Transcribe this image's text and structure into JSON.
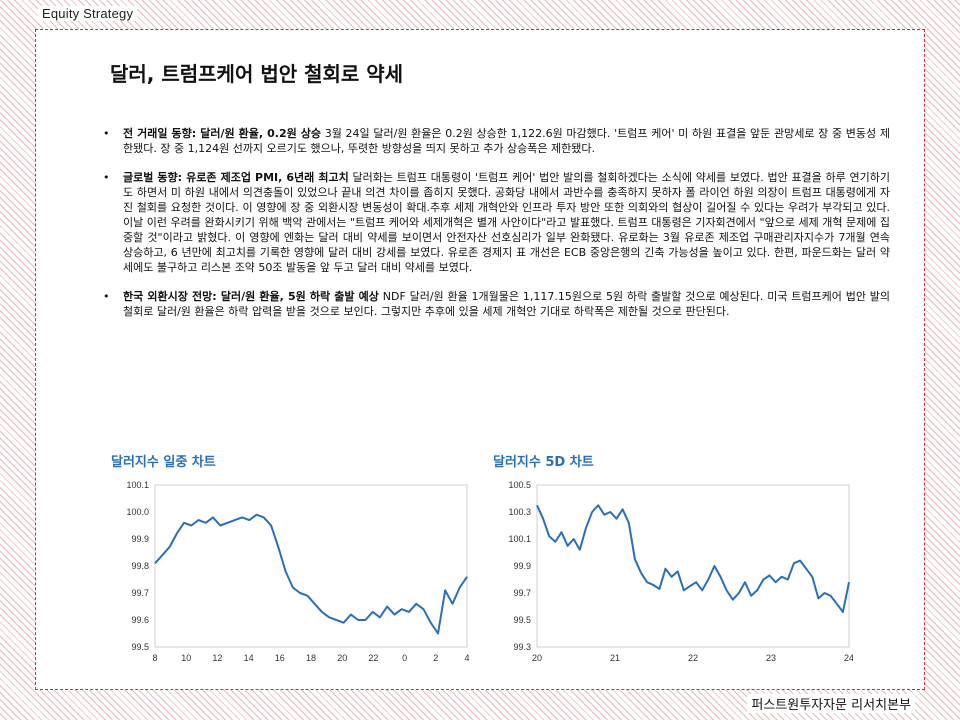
{
  "header": {
    "section": "Equity Strategy"
  },
  "page": {
    "title": "달러, 트럼프케어 법안 철회로 약세"
  },
  "bullets": [
    {
      "lead": "전 거래일 동향: 달러/원 환율, 0.2원 상승",
      "body": "3월 24일 달러/원 환율은 0.2원 상승한 1,122.6원 마감했다. '트럼프 케어' 미 하원 표결을 앞둔 관망세로 장 중 변동성 제한됐다. 장 중 1,124원 선까지 오르기도 했으나, 뚜렷한 방향성을 띄지 못하고 추가 상승폭은 제한됐다."
    },
    {
      "lead": "글로벌 동향: 유로존 제조업 PMI, 6년래 최고치",
      "body": "달러화는 트럼프 대통령이 '트럼프 케어' 법안 발의를 철회하겠다는 소식에 약세를 보였다. 법안 표결을 하루 연기하기도 하면서 미 하원 내에서 의견충돌이 있었으나 끝내 의견 차이를 좁히지 못했다. 공화당 내에서 과반수를 충족하지 못하자 폴 라이언 하원 의장이 트럼프 대통령에게 자진 철회를 요청한 것이다. 이 영향에 장 중 외환시장 변동성이 확대.추후 세제 개혁안와 인프라 투자 방안 또한 의회와의 협상이 길어질 수 있다는 우려가 부각되고 있다. 이날 이런 우려를 완화시키기 위해 백악 관에서는 \"트럼프 케어와 세제개혁은 별개 사안이다\"라고 발표했다. 트럼프 대통령은 기자회견에서 \"앞으로 세제 개혁 문제에 집중할 것\"이라고 밝혔다. 이 영향에 엔화는 달러 대비 약세를 보이면서 안전자산 선호심리가 일부 완화됐다. 유로화는 3월 유로존 제조업 구매관리자지수가 7개월 연속 상승하고, 6 년만에 최고치를 기록한 영향에 달러 대비 강세를 보였다. 유로존 경제지 표 개선은 ECB 중앙은행의 긴축 가능성을 높이고 있다. 한편, 파운드화는 달러 약세에도 불구하고 리스본 조약 50조 발동을 앞 두고 달러 대비 약세를 보였다."
    },
    {
      "lead": "한국 외환시장 전망: 달러/원 환율, 5원 하락 출발 예상",
      "body": "NDF 달러/원 환율 1개월물은 1,117.15원으로 5원 하락 출발할 것으로 예상된다. 미국 트럼프케어 법안 발의 철회로 달러/원 환율은 하락 압력을 받을 것으로 보인다. 그렇지만 추후에 있을 세제 개혁안 기대로 하락폭은 제한될 것으로 판단된다."
    }
  ],
  "bullet_symbol": "•",
  "footer": {
    "source": "퍼스트원투자자문 리서치본부"
  },
  "chart_data": [
    {
      "type": "line",
      "title": "달러지수 일중 차트",
      "line_color": "#2a6fb6",
      "x_ticks": [
        "8",
        "10",
        "12",
        "14",
        "16",
        "18",
        "20",
        "22",
        "0",
        "2",
        "4"
      ],
      "y_ticks": [
        "100.1",
        "100.0",
        "99.9",
        "99.8",
        "99.7",
        "99.6",
        "99.5"
      ],
      "ylim": [
        99.5,
        100.1
      ],
      "x": [
        8,
        8.5,
        9,
        9.5,
        10,
        10.5,
        11,
        11.5,
        12,
        12.5,
        13,
        13.5,
        14,
        14.5,
        15,
        15.5,
        16,
        16.5,
        17,
        17.5,
        18,
        18.5,
        19,
        19.5,
        20,
        20.5,
        21,
        21.5,
        22,
        22.5,
        23,
        23.5,
        24,
        24.5,
        25,
        25.5,
        26,
        26.5,
        27,
        27.5,
        28,
        28.5,
        29,
        29.5
      ],
      "y": [
        99.81,
        99.84,
        99.87,
        99.92,
        99.96,
        99.95,
        99.97,
        99.96,
        99.98,
        99.95,
        99.96,
        99.97,
        99.98,
        99.97,
        99.99,
        99.98,
        99.95,
        99.87,
        99.78,
        99.72,
        99.7,
        99.69,
        99.66,
        99.63,
        99.61,
        99.6,
        99.59,
        99.62,
        99.6,
        99.6,
        99.63,
        99.61,
        99.65,
        99.62,
        99.64,
        99.63,
        99.66,
        99.64,
        99.59,
        99.55,
        99.71,
        99.66,
        99.72,
        99.76
      ]
    },
    {
      "type": "line",
      "title": "달러지수 5D 차트",
      "line_color": "#2a6fb6",
      "x_ticks": [
        "20",
        "21",
        "22",
        "23",
        "24"
      ],
      "y_ticks": [
        "100.5",
        "100.3",
        "100.1",
        "99.9",
        "99.7",
        "99.5",
        "99.3"
      ],
      "ylim": [
        99.3,
        100.5
      ],
      "x": [
        20,
        20.1,
        20.2,
        20.3,
        20.4,
        20.5,
        20.6,
        20.7,
        20.8,
        20.9,
        21,
        21.1,
        21.2,
        21.3,
        21.4,
        21.5,
        21.6,
        21.7,
        21.8,
        21.9,
        22,
        22.1,
        22.2,
        22.3,
        22.4,
        22.5,
        22.6,
        22.7,
        22.8,
        22.9,
        23,
        23.1,
        23.2,
        23.3,
        23.4,
        23.5,
        23.6,
        23.7,
        23.8,
        23.9,
        24,
        24.1,
        24.2,
        24.3,
        24.4,
        24.5,
        24.6,
        24.7,
        24.8,
        24.9,
        25,
        25.1
      ],
      "y": [
        100.35,
        100.25,
        100.12,
        100.08,
        100.15,
        100.05,
        100.1,
        100.02,
        100.18,
        100.3,
        100.35,
        100.28,
        100.3,
        100.25,
        100.32,
        100.22,
        99.95,
        99.85,
        99.78,
        99.76,
        99.73,
        99.88,
        99.82,
        99.86,
        99.72,
        99.75,
        99.78,
        99.72,
        99.8,
        99.9,
        99.82,
        99.72,
        99.65,
        99.7,
        99.78,
        99.68,
        99.72,
        99.8,
        99.83,
        99.78,
        99.82,
        99.8,
        99.92,
        99.94,
        99.88,
        99.82,
        99.66,
        99.7,
        99.68,
        99.62,
        99.56,
        99.78
      ]
    }
  ]
}
